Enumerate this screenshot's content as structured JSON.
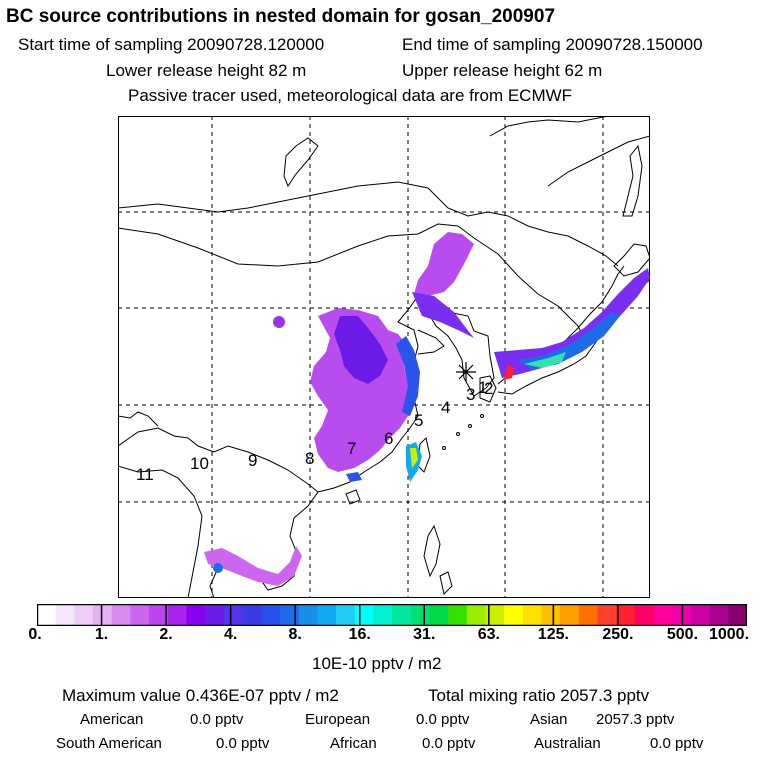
{
  "header": {
    "title": "BC  source contributions in nested domain for gosan_200907",
    "start": "Start time of sampling 20090728.120000",
    "end": "End time of sampling 20090728.150000",
    "lower": "Lower release height   82 m",
    "upper": "Upper release height   62 m",
    "tracer": "Passive tracer used, meteorological data are from ECMWF"
  },
  "map": {
    "site_marker": "*",
    "trajectory_labels": [
      "1",
      "2",
      "3",
      "4",
      "5",
      "6",
      "7",
      "8",
      "9",
      "10",
      "11"
    ]
  },
  "colorbar": {
    "ticks": [
      "0.",
      "1.",
      "2.",
      "4.",
      "8.",
      "16.",
      "31.",
      "63.",
      "125.",
      "250.",
      "500.",
      "1000."
    ],
    "units": "10E-10 pptv / m2",
    "colors": [
      "#ffffff",
      "#f6e6fb",
      "#efccf7",
      "#e6b0f4",
      "#d98bf0",
      "#cc66ee",
      "#bb44ee",
      "#aa22ee",
      "#8800ee",
      "#6a1be8",
      "#5533ea",
      "#3a3ae6",
      "#2850ea",
      "#1f6ae8",
      "#178ee8",
      "#10aaf2",
      "#22cdf4",
      "#00ffff",
      "#00f0d0",
      "#00e8a0",
      "#00e070",
      "#00d84a",
      "#33e000",
      "#99ee00",
      "#ccee00",
      "#ffff00",
      "#ffe000",
      "#ffc000",
      "#ffa000",
      "#ff7000",
      "#ff4030",
      "#ff2030",
      "#ff0066",
      "#ff0099",
      "#ee00aa",
      "#cc00a0",
      "#aa0090",
      "#880070"
    ]
  },
  "summary": {
    "max_label": "Maximum value  0.436E-07 pptv / m2",
    "total_label": "Total mixing ratio     2057.3 pptv",
    "rows": [
      [
        {
          "label": "American",
          "value": "0.0 pptv"
        },
        {
          "label": "European",
          "value": "0.0 pptv"
        },
        {
          "label": "Asian",
          "value": "2057.3 pptv"
        }
      ],
      [
        {
          "label": "South American",
          "value": "0.0 pptv"
        },
        {
          "label": "African",
          "value": "0.0 pptv"
        },
        {
          "label": "Australian",
          "value": "0.0 pptv"
        }
      ]
    ]
  }
}
